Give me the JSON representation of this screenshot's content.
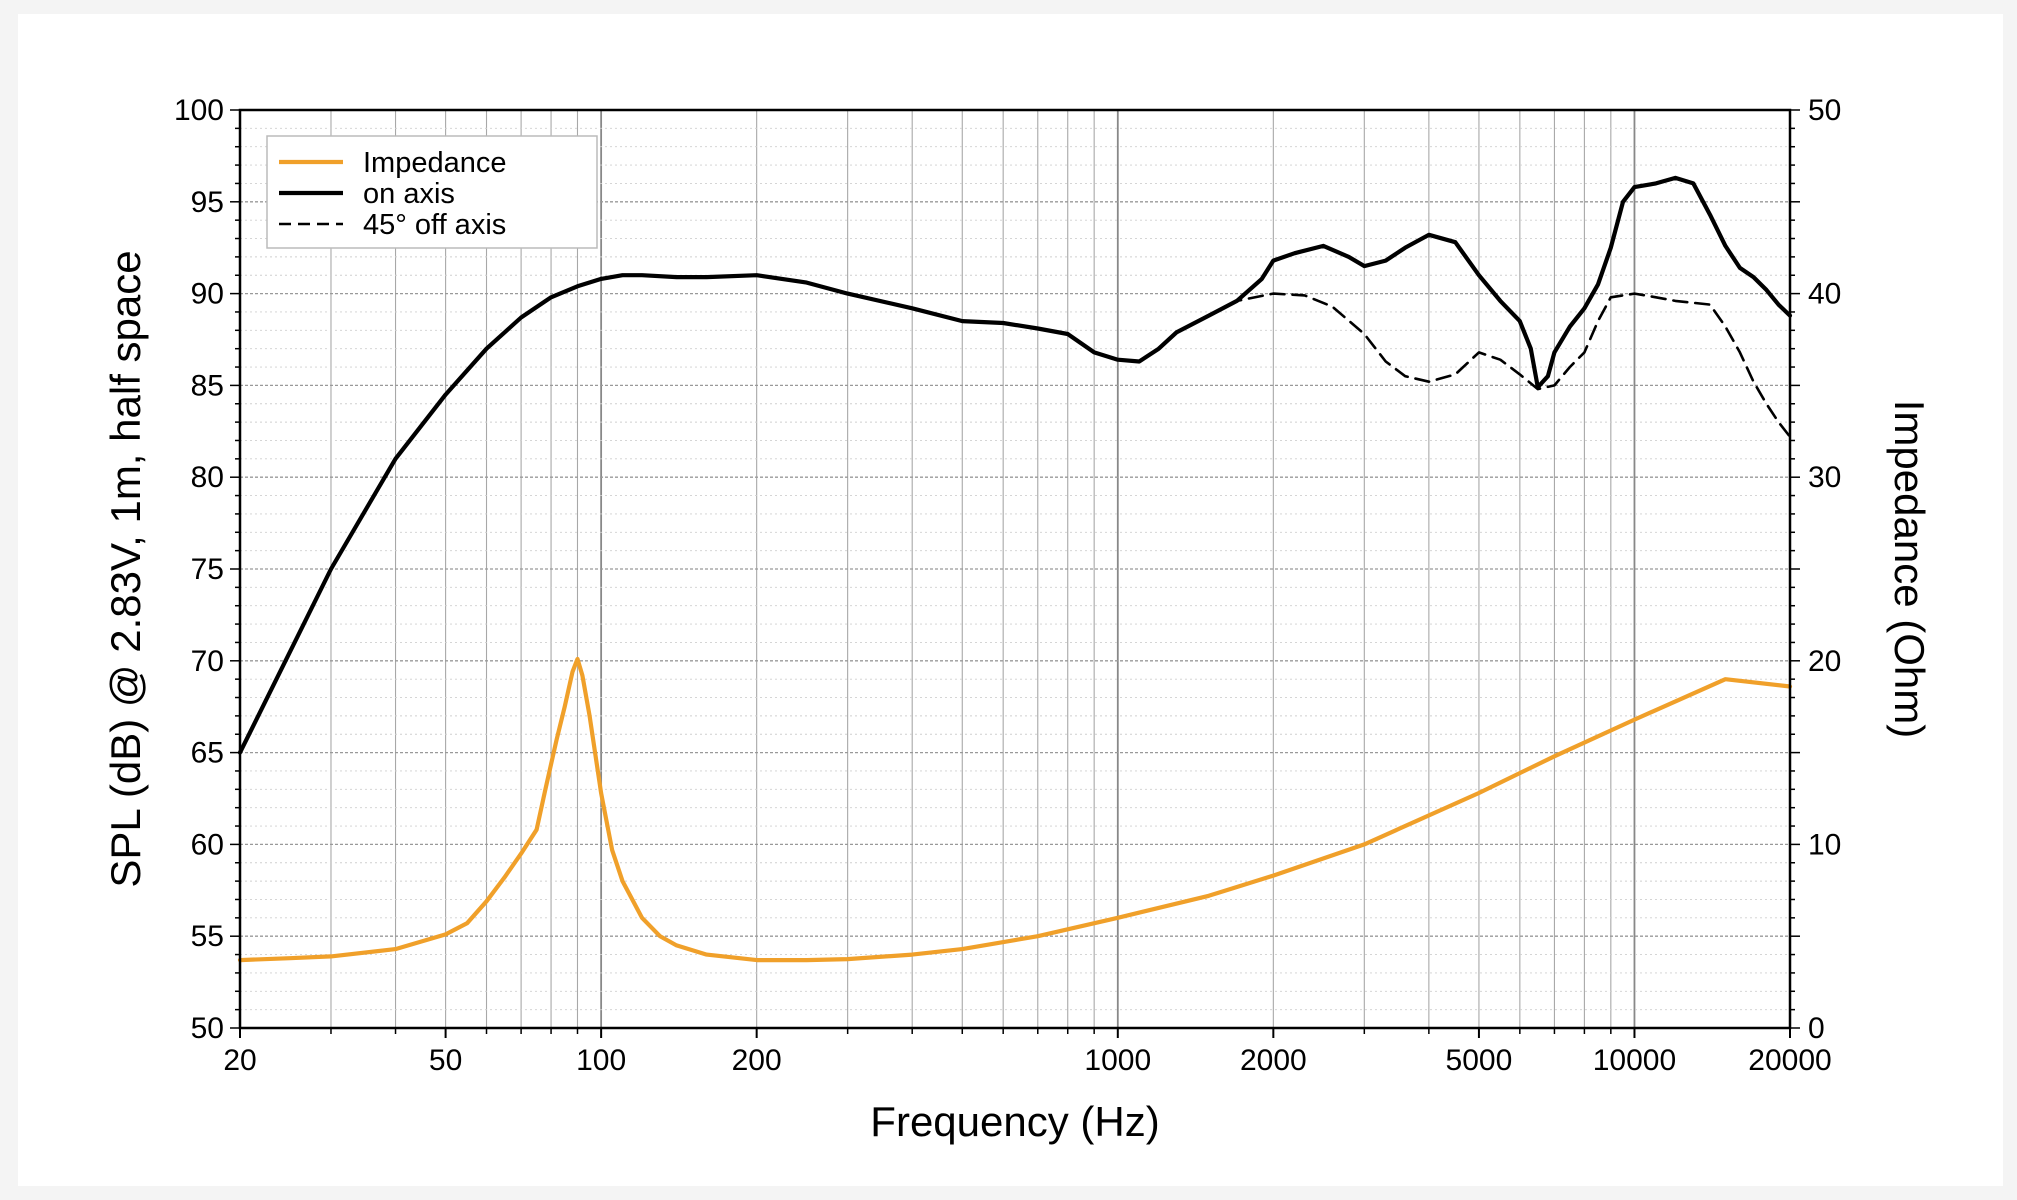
{
  "chart_data": {
    "type": "line",
    "title": "",
    "xlabel": "Frequency (Hz)",
    "ylabel": "SPL (dB) @ 2.83V, 1m, half space",
    "y2label": "Impedance (Ohm)",
    "xscale": "log",
    "xlim": [
      20,
      20000
    ],
    "ylim": [
      50,
      100
    ],
    "y2lim": [
      0,
      50
    ],
    "grid": true,
    "legend_position": "top-left",
    "x_ticks": [
      20,
      50,
      100,
      200,
      1000,
      2000,
      5000,
      10000,
      20000
    ],
    "x_tick_labels": [
      "20",
      "50",
      "100",
      "200",
      "1000",
      "2000",
      "5000",
      "10000",
      "20000"
    ],
    "y_ticks": [
      50,
      55,
      60,
      65,
      70,
      75,
      80,
      85,
      90,
      95,
      100
    ],
    "y_tick_labels": [
      "50",
      "55",
      "60",
      "65",
      "70",
      "75",
      "80",
      "85",
      "90",
      "95",
      "100"
    ],
    "y2_ticks": [
      0,
      10,
      20,
      30,
      40,
      50
    ],
    "y2_tick_labels": [
      "0",
      "10",
      "20",
      "30",
      "40",
      "50"
    ],
    "series": [
      {
        "name": "Impedance",
        "axis": "right",
        "color": "#f0a02a",
        "style": "solid",
        "x": [
          20,
          25,
          30,
          40,
          50,
          55,
          60,
          65,
          70,
          75,
          78,
          82,
          85,
          88,
          90,
          92,
          95,
          100,
          105,
          110,
          120,
          130,
          140,
          160,
          200,
          250,
          300,
          400,
          500,
          700,
          1000,
          1500,
          2000,
          3000,
          5000,
          7000,
          10000,
          15000,
          20000
        ],
        "y": [
          3.7,
          3.8,
          3.9,
          4.3,
          5.1,
          5.7,
          6.9,
          8.2,
          9.5,
          10.8,
          13.0,
          15.7,
          17.5,
          19.4,
          20.1,
          19.2,
          17.0,
          12.8,
          9.7,
          8.0,
          6.0,
          5.0,
          4.5,
          4.0,
          3.7,
          3.7,
          3.75,
          4.0,
          4.3,
          5.0,
          6.0,
          7.2,
          8.3,
          10.0,
          12.8,
          14.8,
          16.8,
          19.0,
          18.6
        ]
      },
      {
        "name": "on axis",
        "axis": "left",
        "color": "#000000",
        "style": "solid",
        "x": [
          20,
          25,
          30,
          40,
          50,
          60,
          70,
          80,
          90,
          100,
          110,
          120,
          140,
          160,
          200,
          250,
          300,
          400,
          500,
          600,
          700,
          800,
          900,
          1000,
          1100,
          1200,
          1300,
          1500,
          1700,
          1900,
          2000,
          2200,
          2500,
          2800,
          3000,
          3300,
          3600,
          4000,
          4500,
          5000,
          5500,
          6000,
          6300,
          6500,
          6800,
          7000,
          7500,
          8000,
          8500,
          9000,
          9500,
          10000,
          11000,
          12000,
          13000,
          14000,
          15000,
          16000,
          17000,
          18000,
          19000,
          20000
        ],
        "y": [
          65.0,
          70.5,
          75.0,
          81.0,
          84.5,
          87.0,
          88.7,
          89.8,
          90.4,
          90.8,
          91.0,
          91.0,
          90.9,
          90.9,
          91.0,
          90.6,
          90.0,
          89.2,
          88.5,
          88.4,
          88.1,
          87.8,
          86.8,
          86.4,
          86.3,
          87.0,
          87.9,
          88.8,
          89.6,
          90.8,
          91.8,
          92.2,
          92.6,
          92.0,
          91.5,
          91.8,
          92.5,
          93.2,
          92.8,
          91.0,
          89.6,
          88.5,
          87.0,
          84.9,
          85.5,
          86.8,
          88.2,
          89.2,
          90.5,
          92.5,
          95.0,
          95.8,
          96.0,
          96.3,
          96.0,
          94.3,
          92.6,
          91.4,
          90.9,
          90.2,
          89.4,
          88.8
        ]
      },
      {
        "name": "45° off axis",
        "axis": "left",
        "color": "#000000",
        "style": "dashed",
        "x": [
          1500,
          1700,
          2000,
          2300,
          2600,
          3000,
          3300,
          3600,
          4000,
          4500,
          5000,
          5500,
          6000,
          6500,
          7000,
          7500,
          8000,
          8500,
          9000,
          10000,
          11000,
          12000,
          13000,
          14000,
          15000,
          16000,
          17000,
          18000,
          19000,
          20000
        ],
        "y": [
          88.8,
          89.6,
          90.0,
          89.9,
          89.3,
          87.8,
          86.3,
          85.5,
          85.2,
          85.6,
          86.8,
          86.4,
          85.6,
          84.8,
          85.0,
          86.0,
          86.8,
          88.5,
          89.8,
          90.0,
          89.8,
          89.6,
          89.5,
          89.4,
          88.2,
          86.8,
          85.2,
          84.0,
          83.0,
          82.2
        ]
      }
    ]
  }
}
